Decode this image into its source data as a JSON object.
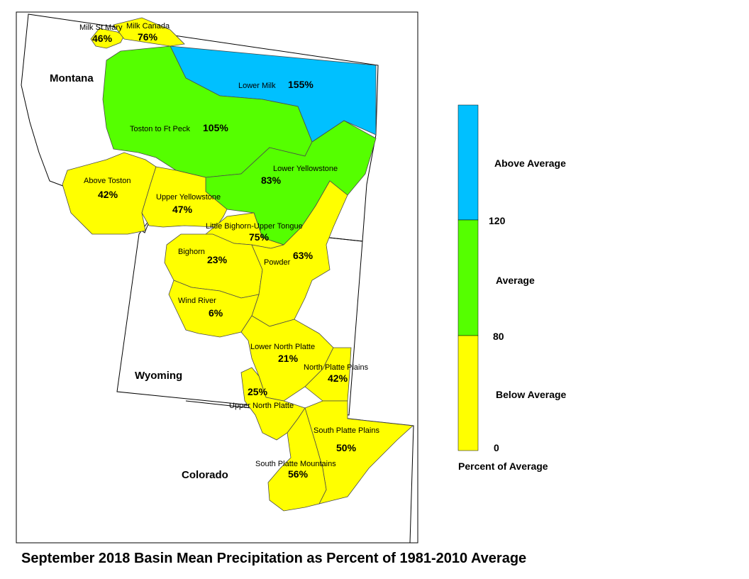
{
  "colors": {
    "above": "#00c0ff",
    "average": "#55ff00",
    "below": "#ffff00",
    "frame": "#000000",
    "basin_border": "#4a4a4a"
  },
  "title": "September 2018 Basin Mean Precipitation as Percent of 1981-2010 Average",
  "states": {
    "montana": "Montana",
    "wyoming": "Wyoming",
    "colorado": "Colorado"
  },
  "basins": [
    {
      "id": "milk-st-mary",
      "name": "Milk St Mary",
      "percent": "46%",
      "category": "below"
    },
    {
      "id": "milk-canada",
      "name": "Milk Canada",
      "percent": "76%",
      "category": "below"
    },
    {
      "id": "lower-milk",
      "name": "Lower Milk",
      "percent": "155%",
      "category": "above"
    },
    {
      "id": "toston-ft-peck",
      "name": "Toston to Ft Peck",
      "percent": "105%",
      "category": "average"
    },
    {
      "id": "lower-yellowstone",
      "name": "Lower Yellowstone",
      "percent": "83%",
      "category": "average"
    },
    {
      "id": "above-toston",
      "name": "Above Toston",
      "percent": "42%",
      "category": "below"
    },
    {
      "id": "upper-yellowstone",
      "name": "Upper Yellowstone",
      "percent": "47%",
      "category": "below"
    },
    {
      "id": "little-bighorn",
      "name": "Little Bighorn-Upper Tongue",
      "percent": "75%",
      "category": "below"
    },
    {
      "id": "bighorn",
      "name": "Bighorn",
      "percent": "23%",
      "category": "below"
    },
    {
      "id": "powder",
      "name": "Powder",
      "percent": "63%",
      "category": "below"
    },
    {
      "id": "wind-river",
      "name": "Wind River",
      "percent": "6%",
      "category": "below"
    },
    {
      "id": "lower-north-platte",
      "name": "Lower North Platte",
      "percent": "21%",
      "category": "below"
    },
    {
      "id": "north-platte-plains",
      "name": "North Platte Plains",
      "percent": "42%",
      "category": "below"
    },
    {
      "id": "upper-north-platte",
      "name": "Upper North Platte",
      "percent": "25%",
      "category": "below"
    },
    {
      "id": "south-platte-plains",
      "name": "South Platte Plains",
      "percent": "50%",
      "category": "below"
    },
    {
      "id": "south-platte-mountains",
      "name": "South Platte Mountains",
      "percent": "56%",
      "category": "below"
    }
  ],
  "legend": {
    "categories": [
      {
        "key": "above",
        "label": "Above Average"
      },
      {
        "key": "average",
        "label": "Average"
      },
      {
        "key": "below",
        "label": "Below Average"
      }
    ],
    "breaks": [
      "120",
      "80",
      "0"
    ],
    "caption": "Percent of Average"
  }
}
